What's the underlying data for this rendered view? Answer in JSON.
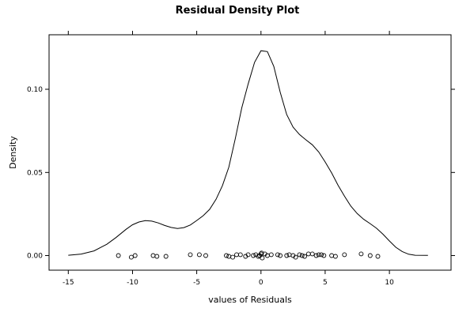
{
  "chart_data": {
    "type": "line",
    "title": "Residual Density Plot",
    "xlabel": "values of Residuals",
    "ylabel": "Density",
    "xlim": [
      -16.5,
      14.8
    ],
    "ylim": [
      -0.0088,
      0.1328
    ],
    "x_ticks": [
      -15,
      -10,
      -5,
      0,
      5,
      10
    ],
    "x_tick_labels": [
      "-15",
      "-10",
      "-5",
      "0",
      "5",
      "10"
    ],
    "y_ticks": [
      0.0,
      0.05,
      0.1
    ],
    "y_tick_labels": [
      "0.00",
      "0.05",
      "0.10"
    ],
    "grid": false,
    "series": [
      {
        "x": [
          -15,
          -14,
          -13,
          -12,
          -11.3,
          -10.5,
          -10,
          -9.5,
          -9,
          -8.5,
          -8,
          -7.5,
          -7,
          -6.5,
          -6,
          -5.5,
          -5,
          -4.5,
          -4,
          -3.5,
          -3,
          -2.5,
          -2,
          -1.5,
          -1,
          -0.5,
          0,
          0.5,
          1,
          1.5,
          2,
          2.5,
          3,
          3.5,
          4,
          4.5,
          5,
          5.5,
          6,
          6.5,
          7,
          7.5,
          8,
          8.5,
          9,
          9.5,
          10,
          10.5,
          11,
          11.5,
          12,
          13
        ],
        "values": [
          0.0002,
          0.0009,
          0.0028,
          0.0068,
          0.0108,
          0.0158,
          0.0185,
          0.0202,
          0.021,
          0.0207,
          0.0196,
          0.0181,
          0.0169,
          0.0163,
          0.0168,
          0.0184,
          0.0211,
          0.024,
          0.0278,
          0.0338,
          0.0421,
          0.0532,
          0.0702,
          0.0888,
          0.1032,
          0.1162,
          0.1232,
          0.1227,
          0.1138,
          0.0982,
          0.0848,
          0.0772,
          0.0728,
          0.0696,
          0.0666,
          0.0623,
          0.0563,
          0.0497,
          0.0423,
          0.0357,
          0.0297,
          0.0252,
          0.0218,
          0.0192,
          0.0164,
          0.0128,
          0.0088,
          0.005,
          0.0024,
          0.0008,
          0.0002,
          0.0001
        ]
      }
    ],
    "rug": {
      "x": [
        -11.1,
        -10.1,
        -9.8,
        -8.4,
        -8.1,
        -7.4,
        -5.5,
        -4.8,
        -4.3,
        -2.7,
        -2.5,
        -2.2,
        -1.9,
        -1.6,
        -1.2,
        -1.0,
        -0.6,
        -0.4,
        -0.2,
        -0.1,
        0.0,
        0.05,
        0.1,
        0.3,
        0.5,
        0.8,
        1.3,
        1.5,
        2.0,
        2.2,
        2.5,
        2.7,
        3.0,
        3.2,
        3.4,
        3.7,
        4.0,
        4.3,
        4.5,
        4.7,
        4.9,
        5.5,
        5.8,
        6.5,
        7.8,
        8.5,
        9.1
      ],
      "y": [
        0.0,
        -0.001,
        0.0,
        0.0,
        -0.0005,
        -0.0005,
        0.0005,
        0.0005,
        0.0,
        0.0,
        -0.0005,
        -0.001,
        0.0005,
        0.0005,
        -0.0005,
        0.0005,
        0.0,
        0.0005,
        -0.0005,
        0.0,
        0.001,
        0.0015,
        -0.0015,
        0.001,
        0.0,
        0.0005,
        0.0005,
        0.0,
        0.0,
        0.0005,
        0.0,
        -0.001,
        0.0005,
        0.0,
        -0.0005,
        0.001,
        0.001,
        0.0,
        0.0005,
        0.0005,
        0.0,
        0.0,
        -0.0005,
        0.0005,
        0.001,
        0.0,
        -0.0005
      ]
    }
  }
}
